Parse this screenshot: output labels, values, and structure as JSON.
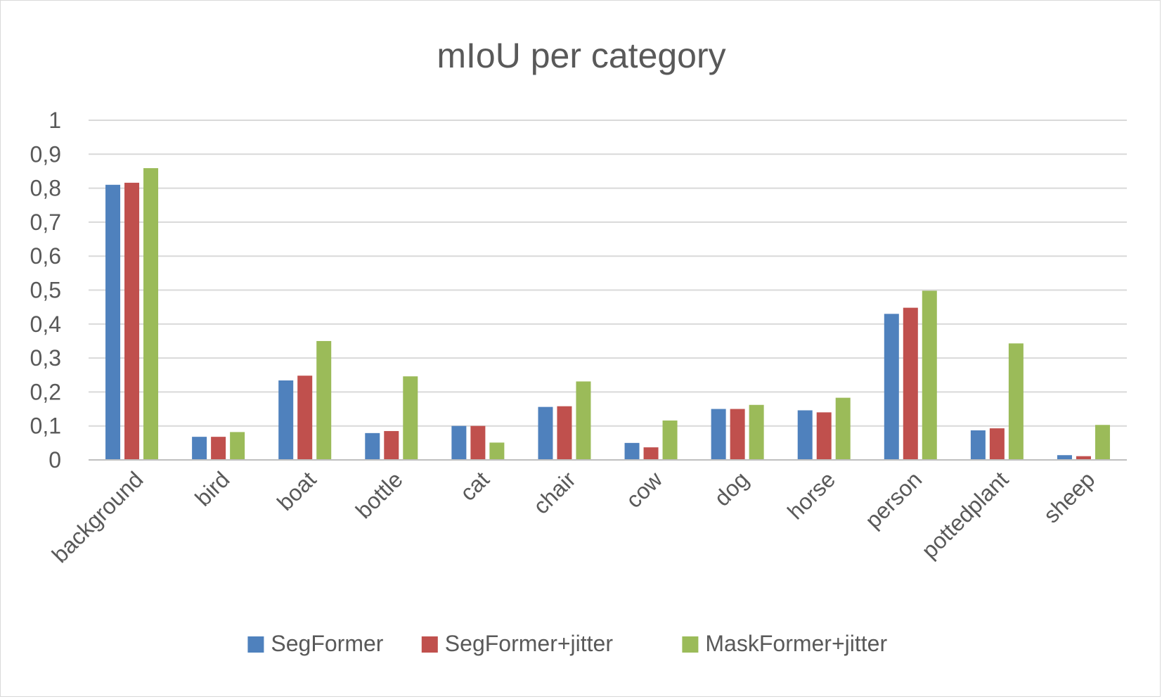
{
  "chart_data": {
    "type": "bar",
    "title": "mIoU per category",
    "xlabel": "",
    "ylabel": "",
    "ylim": [
      0,
      1
    ],
    "yticks": [
      "0",
      "0,1",
      "0,2",
      "0,3",
      "0,4",
      "0,5",
      "0,6",
      "0,7",
      "0,8",
      "0,9",
      "1"
    ],
    "ytick_values": [
      0,
      0.1,
      0.2,
      0.3,
      0.4,
      0.5,
      0.6,
      0.7,
      0.8,
      0.9,
      1
    ],
    "grid": true,
    "legend_position": "bottom",
    "categories": [
      "background",
      "bird",
      "boat",
      "bottle",
      "cat",
      "chair",
      "cow",
      "dog",
      "horse",
      "person",
      "pottedplant",
      "sheep"
    ],
    "series": [
      {
        "name": "SegFormer",
        "color": "#4f81bd",
        "values": [
          0.81,
          0.068,
          0.234,
          0.079,
          0.1,
          0.156,
          0.05,
          0.15,
          0.146,
          0.43,
          0.087,
          0.014
        ]
      },
      {
        "name": "SegFormer+jitter",
        "color": "#c0504d",
        "values": [
          0.816,
          0.068,
          0.248,
          0.085,
          0.1,
          0.158,
          0.037,
          0.15,
          0.14,
          0.448,
          0.093,
          0.011
        ]
      },
      {
        "name": "MaskFormer+jitter",
        "color": "#9bbb59",
        "values": [
          0.859,
          0.082,
          0.35,
          0.246,
          0.051,
          0.231,
          0.116,
          0.162,
          0.183,
          0.498,
          0.343,
          0.103
        ]
      }
    ]
  }
}
